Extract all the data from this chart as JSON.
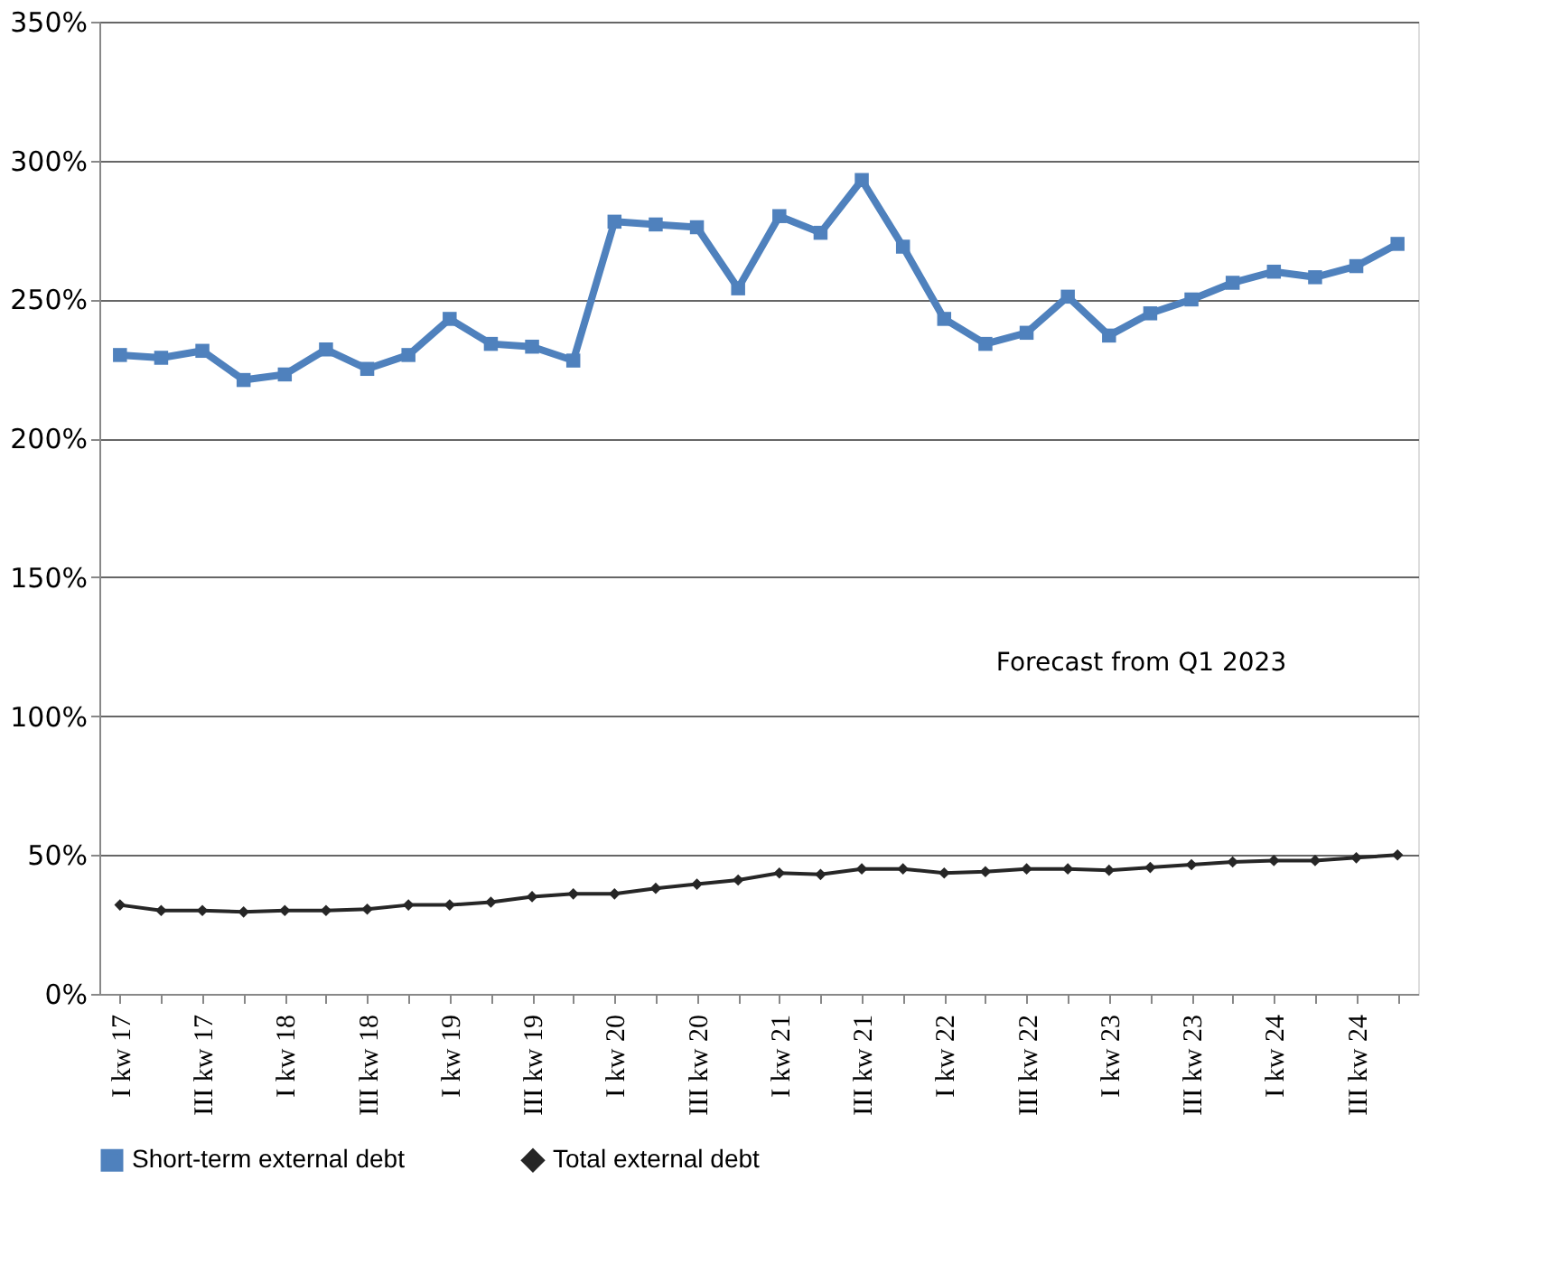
{
  "chart_data": {
    "type": "line",
    "categories": [
      "I kw 17",
      null,
      "III kw 17",
      null,
      "I kw 18",
      null,
      "III kw 18",
      null,
      "I kw 19",
      null,
      "III kw 19",
      null,
      "I kw 20",
      null,
      "III kw 20",
      null,
      "I kw 21",
      null,
      "III kw 21",
      null,
      "I kw 22",
      null,
      "III kw 22",
      null,
      "I kw 23",
      null,
      "III kw 23",
      null,
      "I kw 24",
      null,
      "III kw 24",
      null
    ],
    "series": [
      {
        "name": "Short-term external debt",
        "color": "#4f81bd",
        "marker": "square",
        "values": [
          230,
          229,
          231.5,
          221,
          223,
          232,
          225,
          230,
          243,
          234,
          233,
          228,
          278,
          277,
          276,
          254,
          280,
          274,
          293,
          269,
          243,
          234,
          238,
          251,
          237,
          245,
          250,
          256,
          260,
          258,
          262,
          270
        ]
      },
      {
        "name": "Total external debt",
        "color": "#262626",
        "marker": "diamond",
        "values": [
          32,
          30,
          30,
          29.5,
          30,
          30,
          30.5,
          32,
          32,
          33,
          35,
          36,
          36,
          38,
          39.5,
          41,
          43.5,
          43,
          45,
          45,
          43.5,
          44,
          45,
          45,
          44.5,
          45.5,
          46.5,
          47.5,
          48,
          48,
          49,
          50
        ]
      }
    ],
    "ylim": [
      0,
      350
    ],
    "yticks": [
      {
        "value": 0,
        "label": "0%"
      },
      {
        "value": 50,
        "label": "50%"
      },
      {
        "value": 100,
        "label": "100%"
      },
      {
        "value": 150,
        "label": "150%"
      },
      {
        "value": 200,
        "label": "200%"
      },
      {
        "value": 250,
        "label": "250%"
      },
      {
        "value": 300,
        "label": "300%"
      },
      {
        "value": 350,
        "label": "350%"
      }
    ],
    "grid": "y",
    "legend": "bottom",
    "annotations": [
      "Forecast from Q1 2023"
    ]
  }
}
